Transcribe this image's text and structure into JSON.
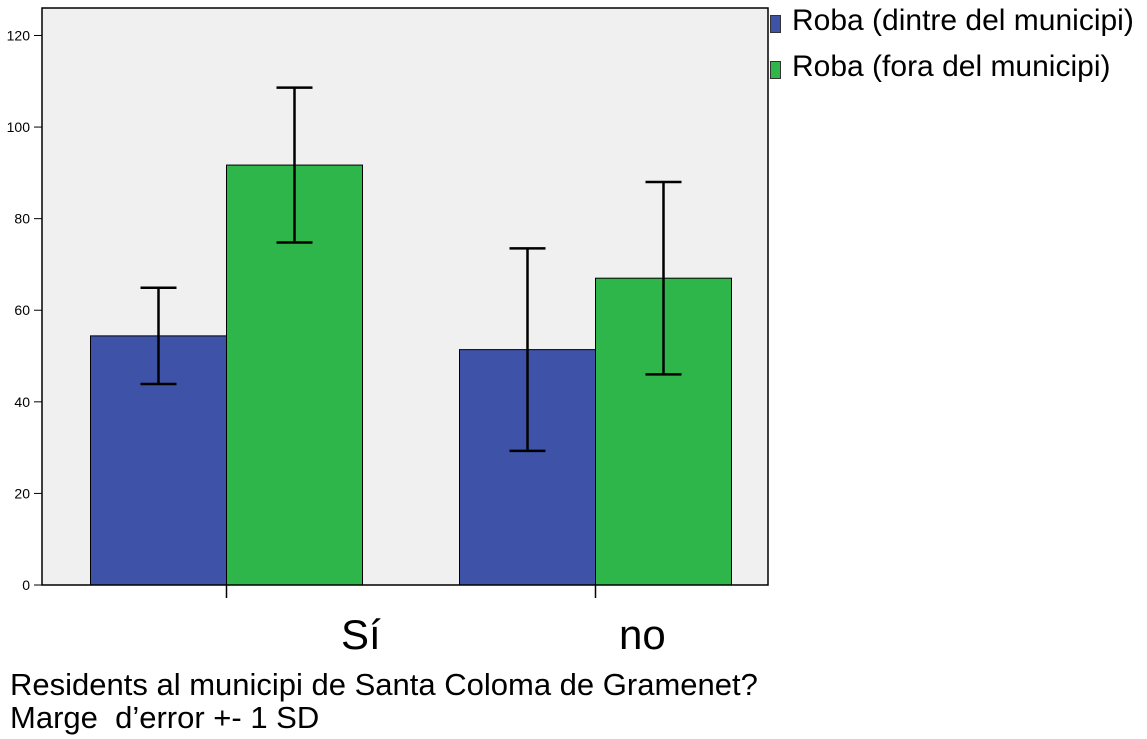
{
  "chart_data": {
    "type": "bar",
    "categories": [
      "Sí",
      "no"
    ],
    "series": [
      {
        "name": "Roba (dintre del municipi)",
        "color": "#3e52a8",
        "values": [
          54.4,
          51.4
        ],
        "sd": [
          10.5,
          22.1
        ]
      },
      {
        "name": "Roba (fora del municipi)",
        "color": "#2eb64a",
        "values": [
          91.7,
          67.0
        ],
        "sd": [
          16.9,
          21.0
        ]
      }
    ],
    "xlabel": "Residents al municipi de Santa Coloma de Gramenet?",
    "note": "Marge  d’error +- 1 SD",
    "y_ticks": [
      0,
      20,
      40,
      60,
      80,
      100,
      120
    ],
    "ylim": [
      0,
      126
    ],
    "grid": false,
    "legend": "right-top",
    "plot_background": "#f0f0f0"
  }
}
